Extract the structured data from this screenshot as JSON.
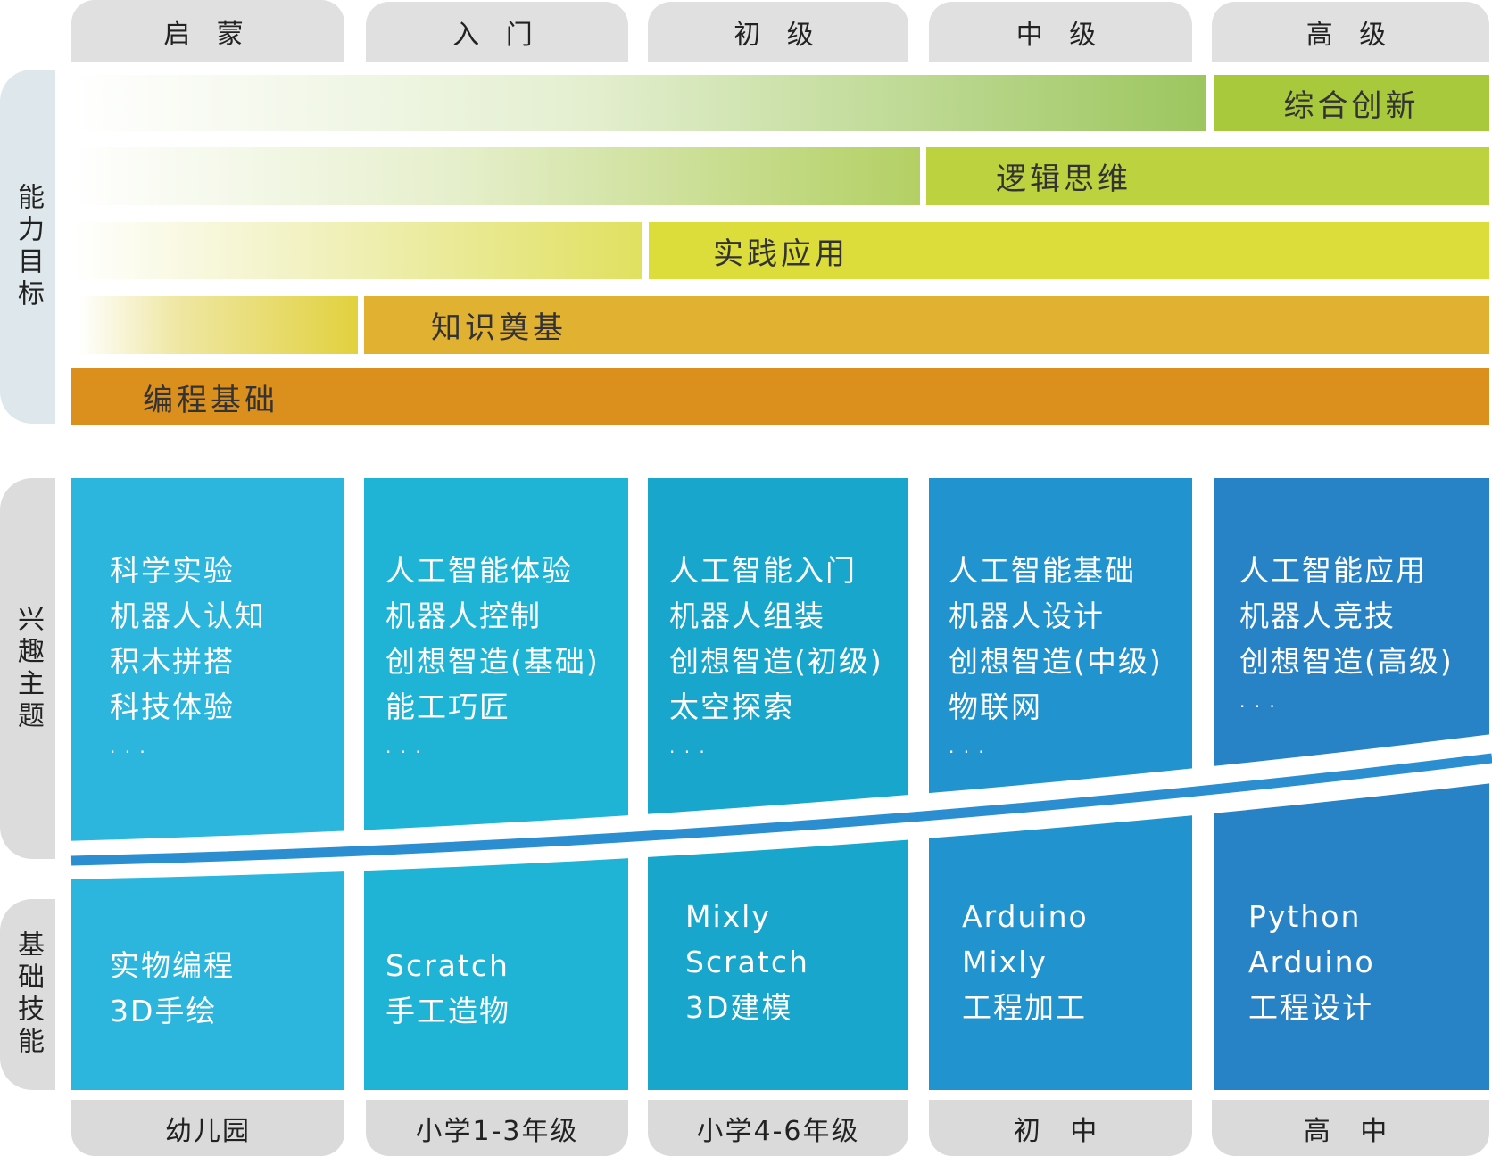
{
  "stages": [
    "启 蒙",
    "入 门",
    "初 级",
    "中 级",
    "高 级"
  ],
  "grades": [
    "幼儿园",
    "小学1-3年级",
    "小学4-6年级",
    "初 中",
    "高 中"
  ],
  "side_labels": {
    "ability": "能力目标",
    "interest": "兴趣主题",
    "skill": "基础技能"
  },
  "ability_bars": [
    {
      "label": "综合创新",
      "color": "#a9c93c"
    },
    {
      "label": "逻辑思维",
      "color": "#bcd23e"
    },
    {
      "label": "实践应用",
      "color": "#dcdc3a"
    },
    {
      "label": "知识奠基",
      "color": "#e1b132"
    },
    {
      "label": "编程基础",
      "color": "#db8f1d"
    }
  ],
  "column_colors": [
    "#2cb6de",
    "#1fb3d5",
    "#18a6cd",
    "#2193ce",
    "#2782c6"
  ],
  "interest_topics": [
    [
      "科学实验",
      "机器人认知",
      "积木拼搭",
      "科技体验",
      "· · ·"
    ],
    [
      "人工智能体验",
      "机器人控制",
      "创想智造(基础)",
      "能工巧匠",
      "· · ·"
    ],
    [
      "人工智能入门",
      "机器人组装",
      "创想智造(初级)",
      "太空探索",
      "· · ·"
    ],
    [
      "人工智能基础",
      "机器人设计",
      "创想智造(中级)",
      "物联网",
      "· · ·"
    ],
    [
      "人工智能应用",
      "机器人竞技",
      "创想智造(高级)",
      "· · ·"
    ]
  ],
  "skills": [
    [
      "实物编程",
      "3D手绘"
    ],
    [
      "Scratch",
      "手工造物"
    ],
    [
      "Mixly",
      "Scratch",
      "3D建模"
    ],
    [
      "Arduino",
      "Mixly",
      "工程加工"
    ],
    [
      "Python",
      "Arduino",
      "工程设计"
    ]
  ]
}
